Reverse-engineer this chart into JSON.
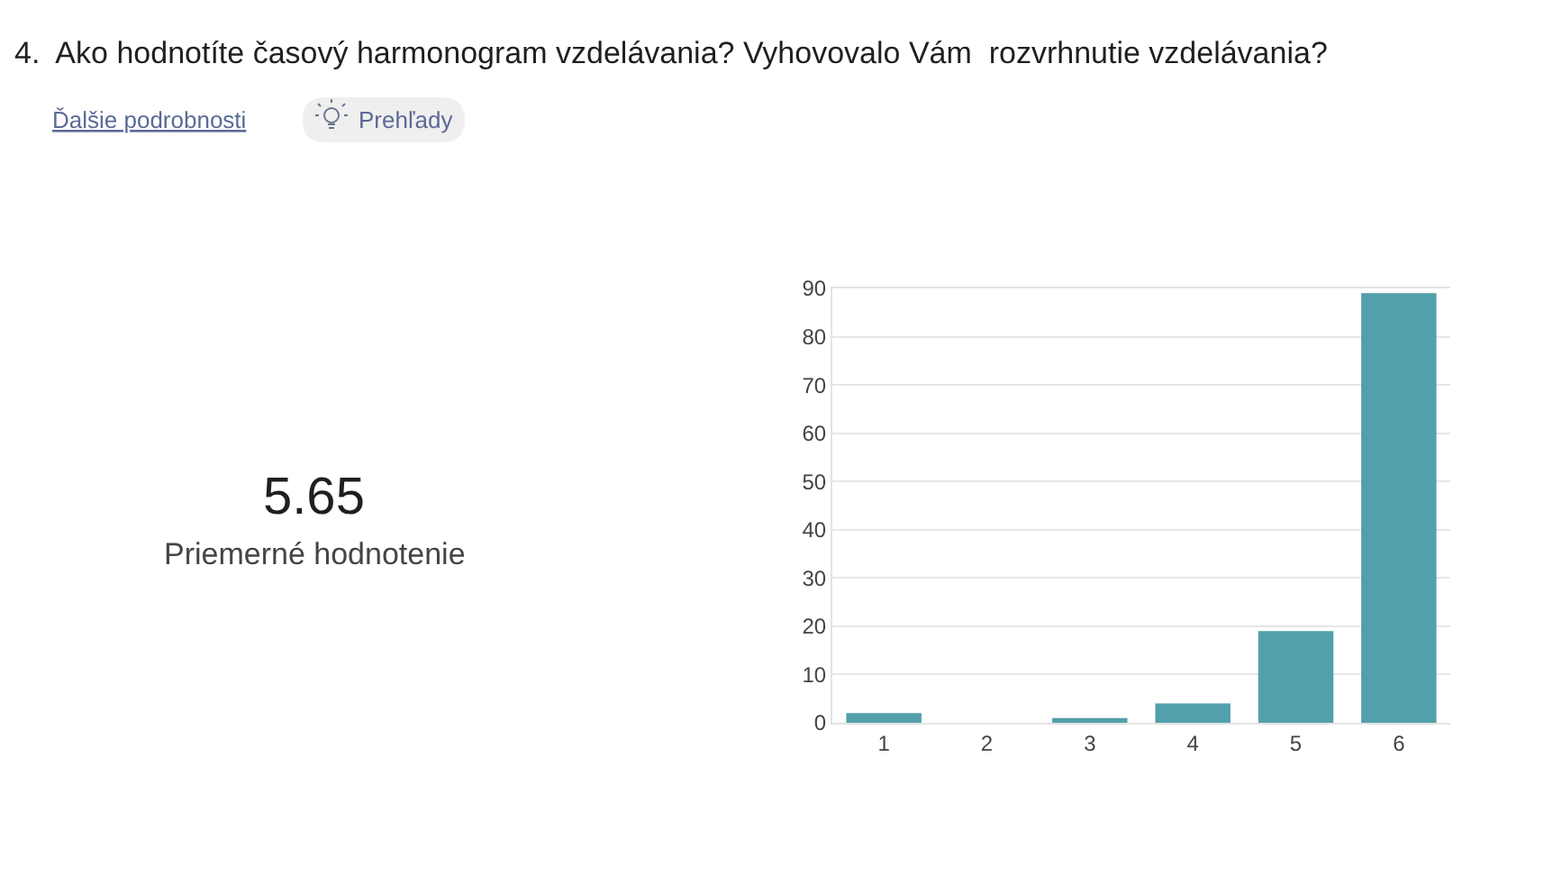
{
  "chart_data": {
    "type": "bar",
    "title": "4.  Ako hodnotíte časový harmonogram vzdelávania? Vyhovovalo Vám  rozvrhnutie vzdelávania?",
    "categories": [
      "1",
      "2",
      "3",
      "4",
      "5",
      "6"
    ],
    "values": [
      2,
      0,
      1,
      4,
      19,
      89
    ],
    "color": "#52a0ab",
    "ylim": [
      0,
      90
    ],
    "yticks": [
      0,
      10,
      20,
      30,
      40,
      50,
      60,
      70,
      80,
      90
    ],
    "grid": "y",
    "annotations": [
      "5.65",
      "Priemerné hodnotenie",
      "Ďalšie podrobnosti",
      "Prehľady"
    ]
  }
}
